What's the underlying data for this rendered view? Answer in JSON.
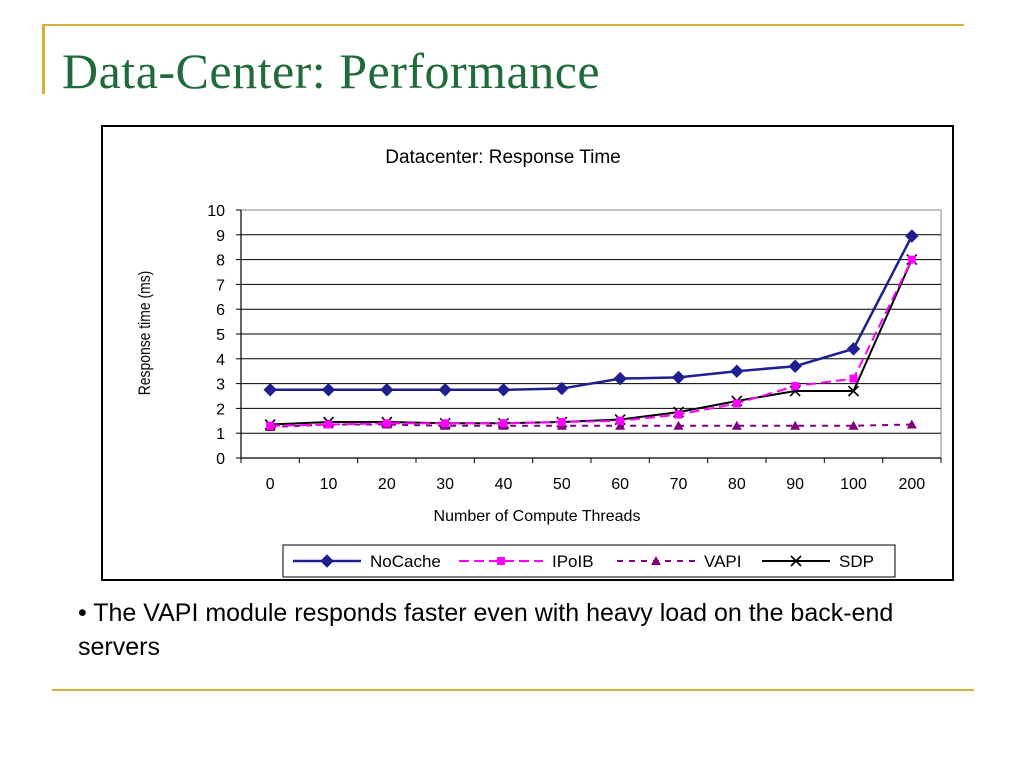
{
  "slide": {
    "title": "Data-Center: Performance",
    "bullet": "• The VAPI module responds faster even with heavy load on the back-end servers",
    "accent_color": "#d4b03a",
    "title_color": "#1f6b3a"
  },
  "chart_data": {
    "type": "line",
    "title": "Datacenter: Response Time",
    "xlabel": "Number of Compute Threads",
    "ylabel": "Response time (ms)",
    "categories": [
      "0",
      "10",
      "20",
      "30",
      "40",
      "50",
      "60",
      "70",
      "80",
      "90",
      "100",
      "200"
    ],
    "ylim": [
      0,
      10
    ],
    "yticks": [
      "0",
      "1",
      "2",
      "3",
      "4",
      "5",
      "6",
      "7",
      "8",
      "9",
      "10"
    ],
    "grid": true,
    "legend_position": "bottom",
    "series": [
      {
        "name": "NoCache",
        "color": "#1f1f8f",
        "marker": "diamond",
        "dash": "solid",
        "values": [
          2.75,
          2.75,
          2.75,
          2.75,
          2.75,
          2.8,
          3.2,
          3.25,
          3.5,
          3.7,
          4.4,
          8.95
        ]
      },
      {
        "name": "IPoIB",
        "color": "#ff00ff",
        "marker": "square",
        "dash": "dashed",
        "values": [
          1.3,
          1.35,
          1.4,
          1.4,
          1.4,
          1.45,
          1.5,
          1.75,
          2.2,
          2.9,
          3.2,
          8.0
        ]
      },
      {
        "name": "VAPI",
        "color": "#800080",
        "marker": "triangle",
        "dash": "dashed",
        "values": [
          1.25,
          1.35,
          1.35,
          1.3,
          1.3,
          1.3,
          1.3,
          1.3,
          1.3,
          1.3,
          1.3,
          1.35
        ]
      },
      {
        "name": "SDP",
        "color": "#000000",
        "marker": "x",
        "dash": "solid",
        "values": [
          1.35,
          1.45,
          1.45,
          1.4,
          1.4,
          1.45,
          1.55,
          1.85,
          2.3,
          2.7,
          2.7,
          8.0
        ]
      }
    ]
  }
}
